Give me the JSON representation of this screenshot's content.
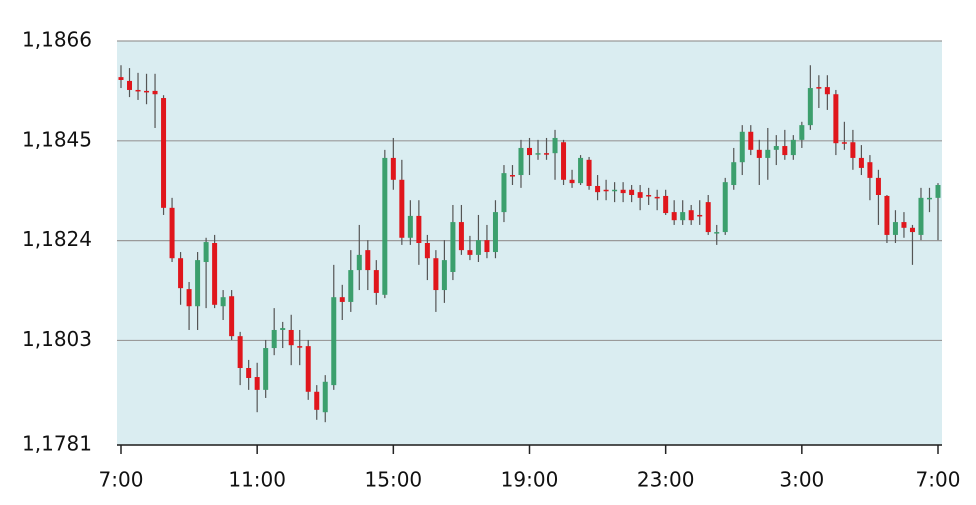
{
  "chart_data": {
    "type": "candlestick",
    "categories": [
      "7:00",
      null,
      null,
      null,
      null,
      null,
      null,
      null,
      null,
      null,
      null,
      null,
      null,
      null,
      null,
      null,
      "11:00",
      null,
      null,
      null,
      null,
      null,
      null,
      null,
      null,
      null,
      null,
      null,
      null,
      null,
      null,
      null,
      "15:00",
      null,
      null,
      null,
      null,
      null,
      null,
      null,
      null,
      null,
      null,
      null,
      null,
      null,
      null,
      null,
      "19:00",
      null,
      null,
      null,
      null,
      null,
      null,
      null,
      null,
      null,
      null,
      null,
      null,
      null,
      null,
      null,
      "23:00",
      null,
      null,
      null,
      null,
      null,
      null,
      null,
      null,
      null,
      null,
      null,
      null,
      null,
      null,
      null,
      "3:00",
      null,
      null,
      null,
      null,
      null,
      null,
      null,
      null,
      null,
      null,
      null,
      null,
      null,
      null,
      null,
      "7:00"
    ],
    "open": [
      1.18584,
      1.18576,
      1.18557,
      1.18555,
      1.18555,
      1.1854,
      1.18309,
      1.18203,
      1.18138,
      1.18102,
      1.18195,
      1.18235,
      1.18102,
      1.18123,
      1.18039,
      1.17972,
      1.17953,
      1.17926,
      1.18014,
      1.18052,
      1.18052,
      1.18018,
      1.18018,
      1.17922,
      1.17879,
      1.17936,
      1.18121,
      1.18111,
      1.18178,
      1.1822,
      1.18178,
      1.18126,
      1.18414,
      1.18368,
      1.18246,
      1.18292,
      1.18235,
      1.18203,
      1.18136,
      1.18174,
      1.18279,
      1.1822,
      1.1821,
      1.18241,
      1.18216,
      1.183,
      1.18378,
      1.18378,
      1.18435,
      1.18422,
      1.18424,
      1.18424,
      1.18447,
      1.18368,
      1.18361,
      1.1841,
      1.18355,
      1.18347,
      1.18347,
      1.18347,
      1.18347,
      1.18342,
      1.18336,
      1.18332,
      1.18334,
      1.183,
      1.18283,
      1.18304,
      1.18294,
      1.18321,
      1.18258,
      1.18258,
      1.18357,
      1.18405,
      1.18469,
      1.18431,
      1.18414,
      1.18431,
      1.18439,
      1.1842,
      1.18452,
      1.18483,
      1.18563,
      1.18563,
      1.18548,
      1.18447,
      1.18447,
      1.18414,
      1.18405,
      1.18372,
      1.18334,
      1.18252,
      1.18279,
      1.18267,
      1.18252,
      1.1833,
      1.1833
    ],
    "high": [
      1.18609,
      1.18603,
      1.18593,
      1.18591,
      1.18591,
      1.18546,
      1.1833,
      1.18216,
      1.18153,
      1.18216,
      1.18246,
      1.18252,
      1.18136,
      1.18136,
      1.18048,
      1.17989,
      1.17983,
      1.18031,
      1.18098,
      1.18069,
      1.18084,
      1.18052,
      1.18031,
      1.17936,
      1.17957,
      1.18189,
      1.18147,
      1.1822,
      1.18273,
      1.18241,
      1.18199,
      1.18431,
      1.18456,
      1.1841,
      1.18325,
      1.18325,
      1.18252,
      1.1822,
      1.18241,
      1.18315,
      1.18315,
      1.1825,
      1.18294,
      1.18273,
      1.18325,
      1.18399,
      1.18399,
      1.18452,
      1.18456,
      1.18452,
      1.18456,
      1.18473,
      1.18452,
      1.18389,
      1.1842,
      1.18416,
      1.18378,
      1.18368,
      1.18363,
      1.18363,
      1.18357,
      1.18357,
      1.18351,
      1.18347,
      1.18347,
      1.18325,
      1.18325,
      1.18315,
      1.18325,
      1.18336,
      1.18273,
      1.18372,
      1.18435,
      1.18483,
      1.18483,
      1.18452,
      1.18477,
      1.18462,
      1.18473,
      1.18462,
      1.1849,
      1.18609,
      1.18588,
      1.18588,
      1.18557,
      1.1849,
      1.18473,
      1.18441,
      1.1842,
      1.18389,
      1.18336,
      1.18304,
      1.183,
      1.18273,
      1.18351,
      1.18351,
      1.18361
    ],
    "low": [
      1.18561,
      1.18542,
      1.18536,
      1.18527,
      1.18477,
      1.18294,
      1.18195,
      1.18105,
      1.18052,
      1.18052,
      1.18098,
      1.18098,
      1.18073,
      1.18031,
      1.17936,
      1.17926,
      1.17879,
      1.17909,
      1.17999,
      1.18014,
      1.17978,
      1.17978,
      1.17905,
      1.17863,
      1.17858,
      1.17926,
      1.18073,
      1.1809,
      1.18136,
      1.18136,
      1.18105,
      1.18119,
      1.18347,
      1.18231,
      1.18231,
      1.18189,
      1.18157,
      1.1809,
      1.18109,
      1.18157,
      1.1821,
      1.18199,
      1.18195,
      1.18203,
      1.18203,
      1.18279,
      1.18357,
      1.18351,
      1.18378,
      1.1841,
      1.1841,
      1.18368,
      1.18357,
      1.18351,
      1.18357,
      1.18347,
      1.18325,
      1.18325,
      1.18321,
      1.18321,
      1.18321,
      1.18304,
      1.18315,
      1.18304,
      1.18294,
      1.18273,
      1.18273,
      1.18273,
      1.18273,
      1.18252,
      1.18231,
      1.18252,
      1.18347,
      1.18378,
      1.1842,
      1.18357,
      1.18368,
      1.18399,
      1.1841,
      1.1841,
      1.18435,
      1.18473,
      1.18519,
      1.18515,
      1.1842,
      1.18431,
      1.18389,
      1.18378,
      1.18325,
      1.18273,
      1.18235,
      1.18235,
      1.18246,
      1.18189,
      1.18241,
      1.183,
      1.18241
    ],
    "close": [
      1.18578,
      1.18557,
      1.18555,
      1.18553,
      1.18548,
      1.18309,
      1.18203,
      1.1814,
      1.18102,
      1.18199,
      1.18237,
      1.18105,
      1.18121,
      1.18039,
      1.17972,
      1.17951,
      1.17926,
      1.18014,
      1.18052,
      1.18056,
      1.1802,
      1.18016,
      1.17922,
      1.17884,
      1.17943,
      1.18121,
      1.18111,
      1.18178,
      1.1821,
      1.18178,
      1.1813,
      1.18414,
      1.18368,
      1.18246,
      1.18292,
      1.18235,
      1.18203,
      1.18136,
      1.18199,
      1.18279,
      1.1822,
      1.1821,
      1.18241,
      1.18216,
      1.183,
      1.18382,
      1.18376,
      1.18435,
      1.1842,
      1.18424,
      1.18422,
      1.18456,
      1.18368,
      1.18361,
      1.18414,
      1.18355,
      1.18342,
      1.18344,
      1.18347,
      1.1834,
      1.18336,
      1.1833,
      1.18334,
      1.1833,
      1.18298,
      1.18283,
      1.183,
      1.18283,
      1.18292,
      1.18258,
      1.18258,
      1.18363,
      1.18405,
      1.18469,
      1.18431,
      1.18414,
      1.18431,
      1.18439,
      1.1842,
      1.18452,
      1.18483,
      1.18561,
      1.18561,
      1.18548,
      1.18445,
      1.18445,
      1.18414,
      1.18393,
      1.18372,
      1.18336,
      1.18252,
      1.18279,
      1.18267,
      1.18258,
      1.1833,
      1.1833,
      1.18357
    ],
    "up_color": "#3c9f6d",
    "down_color": "#e0161c",
    "wick_color": "#555555",
    "background": "#daedf1",
    "ylim": [
      1.1781,
      1.1866
    ],
    "yticks": [
      {
        "value": 1.1781,
        "label": "1,1781"
      },
      {
        "value": 1.1803,
        "label": "1,1803"
      },
      {
        "value": 1.1824,
        "label": "1,1824"
      },
      {
        "value": 1.1845,
        "label": "1,1845"
      },
      {
        "value": 1.1866,
        "label": "1,1866"
      }
    ],
    "grid": true
  }
}
